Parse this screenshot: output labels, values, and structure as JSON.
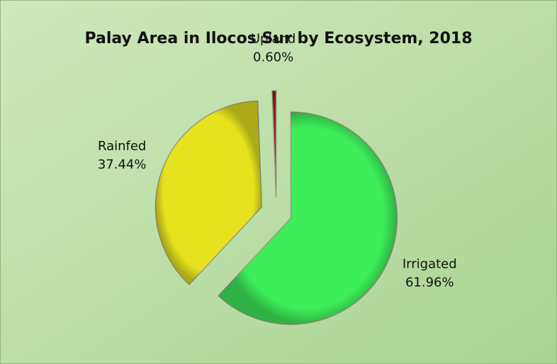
{
  "chart_data": {
    "type": "pie",
    "title": "Palay Area in Ilocos Sur by Ecosystem, 2018",
    "categories": [
      "Irrigated",
      "Rainfed",
      "Upland"
    ],
    "values": [
      61.96,
      37.44,
      0.6
    ],
    "value_labels": [
      "61.96%",
      "37.44%",
      "0.60%"
    ],
    "colors": [
      "#3ded5a",
      "#e6e21e",
      "#8b1a1a"
    ]
  }
}
